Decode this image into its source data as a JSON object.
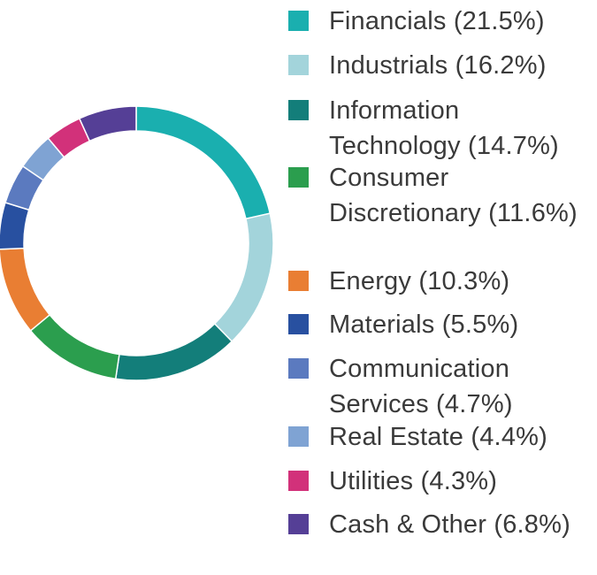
{
  "chart_data": {
    "type": "pie",
    "donut": true,
    "legend_position": "right",
    "categories": [
      "Financials (21.5%)",
      "Industrials (16.2%)",
      "Information Technology (14.7%)",
      "Consumer Discretionary (11.6%)",
      "Energy (10.3%)",
      "Materials (5.5%)",
      "Communication Services (4.7%)",
      "Real Estate (4.4%)",
      "Utilities (4.3%)",
      "Cash & Other (6.8%)"
    ],
    "values": [
      21.5,
      16.2,
      14.7,
      11.6,
      10.3,
      5.5,
      4.7,
      4.4,
      4.3,
      6.8
    ],
    "colors": [
      "#1aafaf",
      "#a3d4db",
      "#137e7a",
      "#2b9e4e",
      "#e97e33",
      "#2850a0",
      "#5b7abf",
      "#7fa3d3",
      "#d2317a",
      "#553f96"
    ]
  }
}
